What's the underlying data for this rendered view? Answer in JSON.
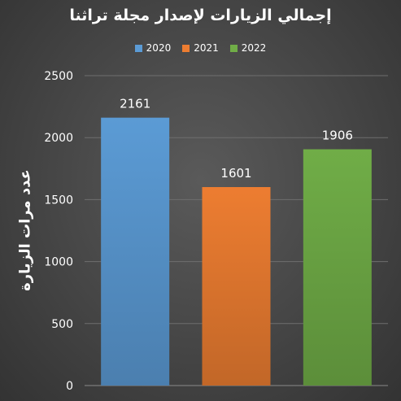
{
  "chart_data": {
    "type": "bar",
    "title": "إجمالي الزيارات لإصدار مجلة تراثنا",
    "ylabel": "عدد مرات الزيارة",
    "xlabel": "",
    "ylim": [
      0,
      2500
    ],
    "yticks": [
      0,
      500,
      1000,
      1500,
      2000,
      2500
    ],
    "grid": true,
    "legend_position": "top",
    "series": [
      {
        "name": "2020",
        "values": [
          2161
        ],
        "color": "#5b9bd5"
      },
      {
        "name": "2021",
        "values": [
          1601
        ],
        "color": "#ed7d31"
      },
      {
        "name": "2022",
        "values": [
          1906
        ],
        "color": "#70ad47"
      }
    ]
  }
}
